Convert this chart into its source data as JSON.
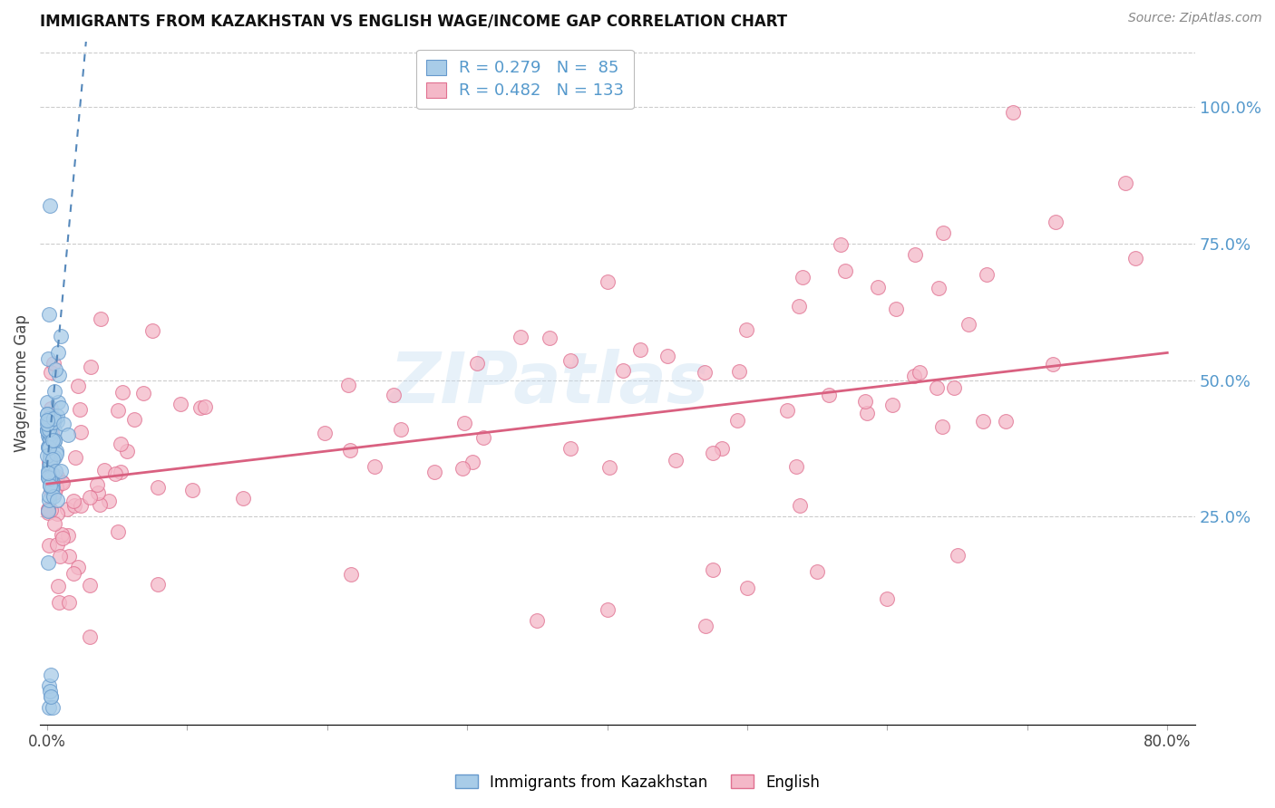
{
  "title": "IMMIGRANTS FROM KAZAKHSTAN VS ENGLISH WAGE/INCOME GAP CORRELATION CHART",
  "source_text": "Source: ZipAtlas.com",
  "ylabel": "Wage/Income Gap",
  "right_ytick_labels": [
    "100.0%",
    "75.0%",
    "50.0%",
    "25.0%"
  ],
  "right_ytick_values": [
    1.0,
    0.75,
    0.5,
    0.25
  ],
  "xmin": -0.005,
  "xmax": 0.82,
  "ymin": -0.13,
  "ymax": 1.12,
  "legend_blue_R": "0.279",
  "legend_blue_N": " 85",
  "legend_pink_R": "0.482",
  "legend_pink_N": "133",
  "watermark": "ZIPatlas",
  "blue_color": "#a8cce8",
  "pink_color": "#f4b8c8",
  "blue_edge_color": "#6699cc",
  "pink_edge_color": "#e07090",
  "blue_line_color": "#5588bb",
  "pink_line_color": "#d96080",
  "right_axis_color": "#5599cc",
  "title_color": "#111111",
  "grid_color": "#cccccc",
  "xtick_labels_show": [
    "0.0%",
    "80.0%"
  ],
  "xtick_positions_show": [
    0.0,
    0.8
  ],
  "xtick_positions_all": [
    0.0,
    0.1,
    0.2,
    0.3,
    0.4,
    0.5,
    0.6,
    0.7,
    0.8
  ],
  "blue_reg_slope": 28.0,
  "blue_reg_intercept": 0.34,
  "pink_reg_slope": 0.3,
  "pink_reg_intercept": 0.31,
  "blue_marker_size": 130,
  "pink_marker_size": 130
}
